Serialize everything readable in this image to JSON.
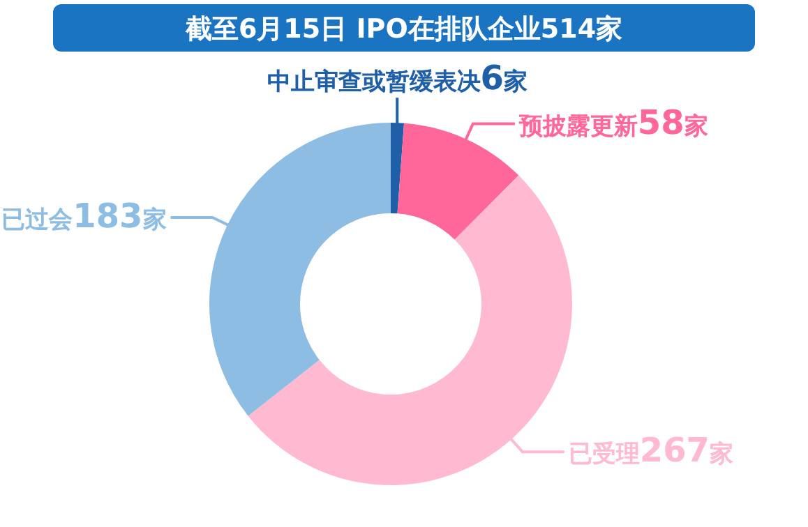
{
  "chart_data": {
    "type": "donut",
    "title": "截至6月15日 IPO在排队企业514家",
    "categories": [
      "中止审查或暂缓表决",
      "预披露更新",
      "已受理",
      "已过会"
    ],
    "values": [
      6,
      58,
      267,
      183
    ],
    "colors": [
      "#1f5fa8",
      "#ff6699",
      "#ffbad2",
      "#8dbde3"
    ],
    "value_labels": [
      "6家",
      "58家",
      "267家",
      "183家"
    ]
  }
}
